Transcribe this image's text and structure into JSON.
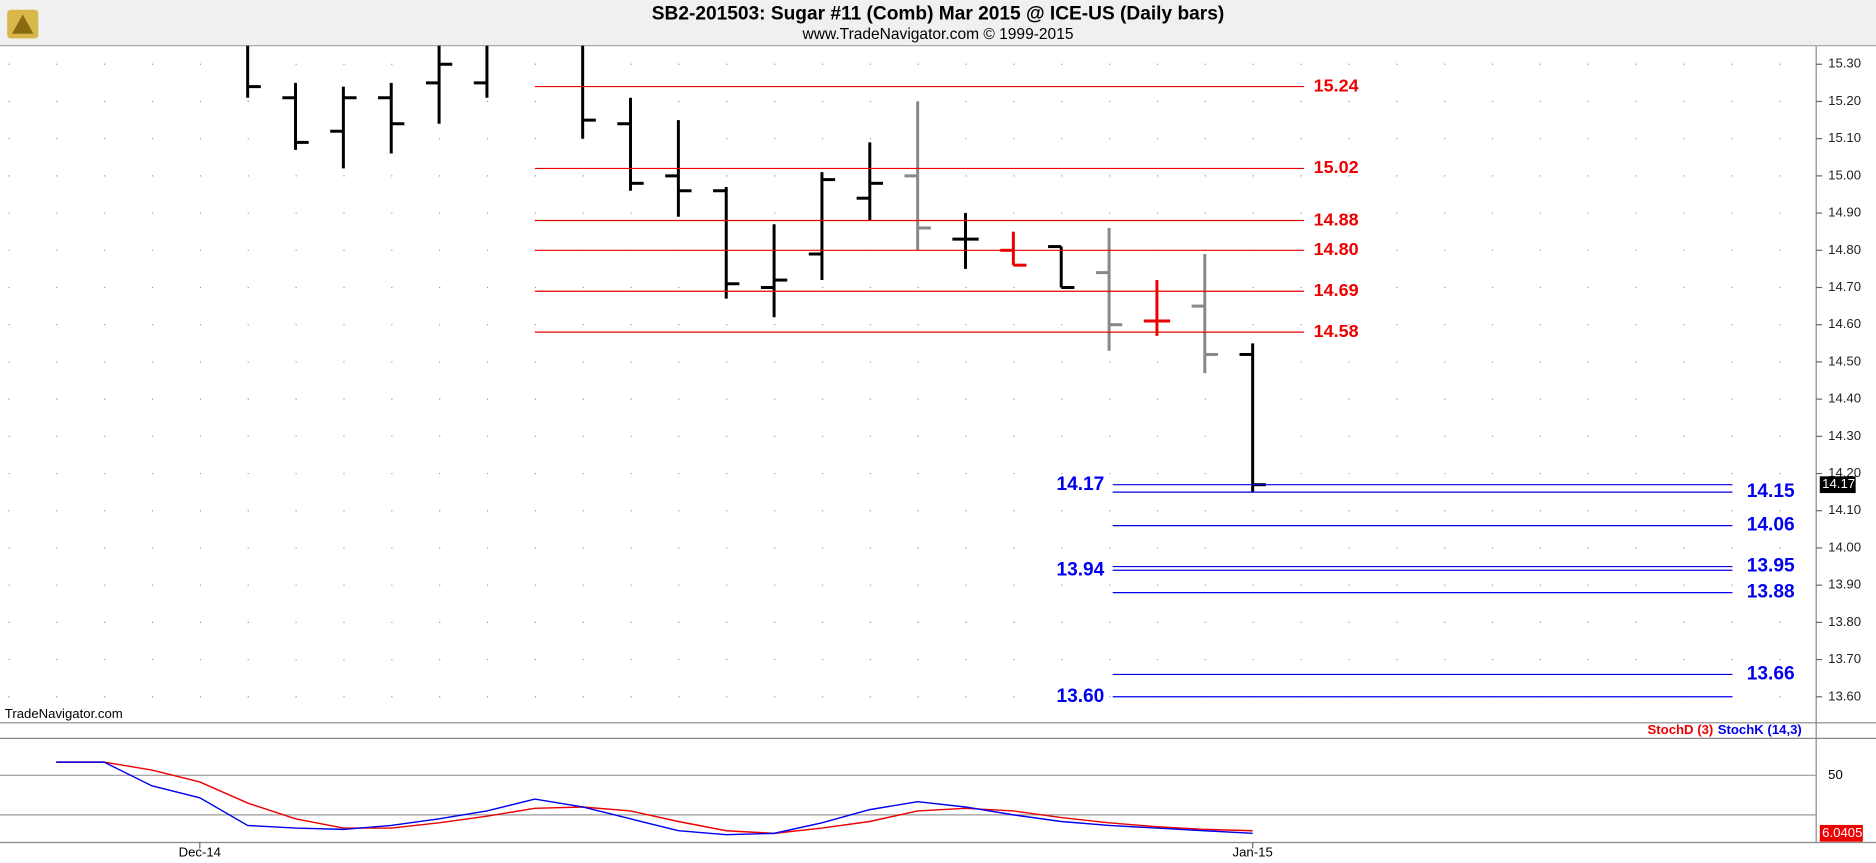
{
  "chart_data": [
    {
      "type": "ohlc",
      "title": "SB2-201503:  Sugar #11 (Comb) Mar 2015 @ ICE-US  (Daily bars)",
      "subtitle": "www.TradeNavigator.com © 1999-2015",
      "watermark": "TradeNavigator.com",
      "ylim": [
        13.53,
        15.35
      ],
      "yticks": [
        {
          "value": 13.6,
          "label": "13.60"
        },
        {
          "value": 13.7,
          "label": "13.70"
        },
        {
          "value": 13.8,
          "label": "13.80"
        },
        {
          "value": 13.9,
          "label": "13.90"
        },
        {
          "value": 14.0,
          "label": "14.00"
        },
        {
          "value": 14.1,
          "label": "14.10"
        },
        {
          "value": 14.2,
          "label": "14.20"
        },
        {
          "value": 14.3,
          "label": "14.30"
        },
        {
          "value": 14.4,
          "label": "14.40"
        },
        {
          "value": 14.5,
          "label": "14.50"
        },
        {
          "value": 14.6,
          "label": "14.60"
        },
        {
          "value": 14.7,
          "label": "14.70"
        },
        {
          "value": 14.8,
          "label": "14.80"
        },
        {
          "value": 14.9,
          "label": "14.90"
        },
        {
          "value": 15.0,
          "label": "15.00"
        },
        {
          "value": 15.1,
          "label": "15.10"
        },
        {
          "value": 15.2,
          "label": "15.20"
        },
        {
          "value": 15.3,
          "label": "15.30"
        }
      ],
      "grid": true,
      "open": [
        null,
        null,
        null,
        null,
        null,
        15.21,
        15.12,
        15.21,
        15.25,
        15.25,
        null,
        null,
        15.14,
        15.0,
        14.96,
        14.7,
        14.79,
        14.94,
        15.0,
        14.83,
        14.8,
        14.81,
        14.74,
        14.61,
        14.65,
        14.52
      ],
      "high": [
        null,
        null,
        null,
        null,
        15.35,
        15.25,
        15.24,
        15.25,
        15.35,
        15.35,
        null,
        15.35,
        15.21,
        15.15,
        14.97,
        14.87,
        15.01,
        15.09,
        15.2,
        14.9,
        14.85,
        14.81,
        14.86,
        14.72,
        14.79,
        14.55
      ],
      "low": [
        null,
        null,
        null,
        null,
        15.21,
        15.07,
        15.02,
        15.06,
        15.14,
        15.21,
        null,
        15.1,
        14.96,
        14.89,
        14.67,
        14.62,
        14.72,
        14.88,
        14.8,
        14.75,
        14.76,
        14.7,
        14.53,
        14.57,
        14.47,
        14.15
      ],
      "close": [
        null,
        null,
        null,
        null,
        15.24,
        15.09,
        15.21,
        15.14,
        15.3,
        null,
        null,
        15.15,
        14.98,
        14.96,
        14.71,
        14.72,
        14.99,
        14.98,
        14.86,
        14.83,
        14.76,
        14.7,
        14.6,
        14.61,
        14.52,
        14.17
      ],
      "bar_colors": [
        null,
        null,
        null,
        null,
        "#000000",
        "#000000",
        "#000000",
        "#000000",
        "#000000",
        "#000000",
        null,
        "#000000",
        "#000000",
        "#000000",
        "#000000",
        "#000000",
        "#000000",
        "#000000",
        "#888888",
        "#000000",
        "#ee0000",
        "#000000",
        "#888888",
        "#ee0000",
        "#888888",
        "#000000"
      ],
      "resistance_color": "#ee0000",
      "resistance_levels": [
        15.24,
        15.02,
        14.88,
        {
          "value": 14.8,
          "label": "14.80"
        },
        14.69,
        14.58
      ],
      "target_color": "#0000ee",
      "target_levels_left": [
        14.17,
        13.94,
        {
          "value": 13.6,
          "label": "13.60"
        }
      ],
      "target_levels_right": [
        14.15,
        14.06,
        13.95,
        13.88,
        13.66
      ]
    },
    {
      "type": "line",
      "categories": [
        null,
        null,
        null,
        "Dec-14",
        null,
        null,
        null,
        null,
        null,
        null,
        null,
        null,
        null,
        null,
        null,
        null,
        null,
        null,
        null,
        null,
        null,
        null,
        null,
        null,
        null,
        "Jan-15"
      ],
      "ylim": [
        0,
        78
      ],
      "yticks": [
        50
      ],
      "hlines": [
        20
      ],
      "series": [
        {
          "name": "StochD (3)",
          "color": "#ee0000",
          "values": [
            60,
            60,
            54,
            45,
            29,
            17,
            10,
            10,
            14,
            19,
            25,
            26,
            23,
            15,
            8,
            6,
            10,
            15,
            23,
            25,
            23,
            18,
            14,
            11,
            9,
            8
          ]
        },
        {
          "name": "StochK (14,3)",
          "color": "#0000ee",
          "values": [
            60,
            60,
            42,
            33,
            12,
            10,
            9,
            12,
            17,
            23,
            32,
            26,
            17,
            8,
            5,
            6,
            14,
            24,
            30,
            26,
            20,
            15,
            12,
            10,
            8,
            6.0405
          ]
        }
      ]
    }
  ]
}
